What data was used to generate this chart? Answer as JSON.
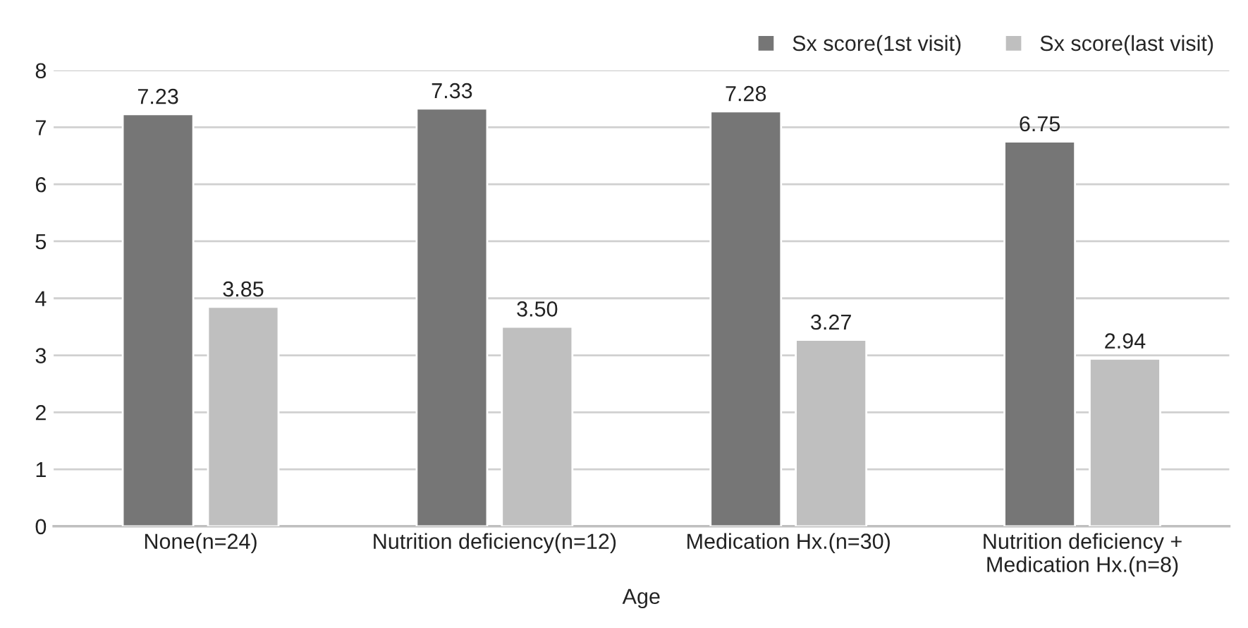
{
  "chart_data": {
    "type": "bar",
    "xlabel": "Age",
    "categories": [
      "None(n=24)",
      "Nutrition deficiency(n=12)",
      "Medication Hx.(n=30)",
      "Nutrition deficiency +\nMedication Hx.(n=8)"
    ],
    "series": [
      {
        "name": "Sx score(1st visit)",
        "color": "#767676",
        "values": [
          7.23,
          7.33,
          7.28,
          6.75
        ],
        "value_labels": [
          "7.23",
          "7.33",
          "7.28",
          "6.75"
        ]
      },
      {
        "name": "Sx score(last visit)",
        "color": "#bfbfbf",
        "values": [
          3.85,
          3.5,
          3.27,
          2.94
        ],
        "value_labels": [
          "3.85",
          "3.50",
          "3.27",
          "2.94"
        ]
      }
    ],
    "ylim": [
      0,
      8
    ],
    "yticks": [
      0,
      1,
      2,
      3,
      4,
      5,
      6,
      7,
      8
    ],
    "grid": "y",
    "legend": "top right"
  }
}
